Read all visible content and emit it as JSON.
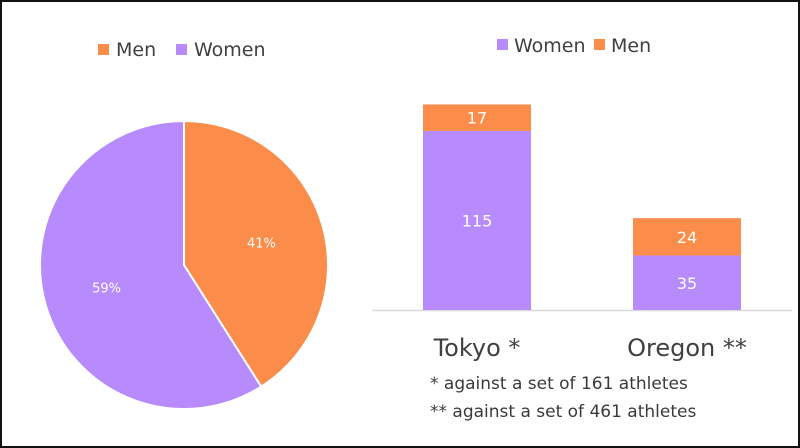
{
  "colors": {
    "men": "#fb8c4a",
    "women": "#b78bfb",
    "text": "#404040",
    "axis": "#d9d9d9"
  },
  "chart_data": [
    {
      "type": "pie",
      "legend": [
        "Men",
        "Women"
      ],
      "legend_position": "top",
      "slices": [
        {
          "name": "Men",
          "value": 41,
          "label": "41%"
        },
        {
          "name": "Women",
          "value": 59,
          "label": "59%"
        }
      ]
    },
    {
      "type": "bar",
      "stacked": true,
      "legend": [
        "Women",
        "Men"
      ],
      "legend_position": "top",
      "categories": [
        "Tokyo *",
        "Oregon **"
      ],
      "series": [
        {
          "name": "Women",
          "values": [
            115,
            35
          ]
        },
        {
          "name": "Men",
          "values": [
            17,
            24
          ]
        }
      ],
      "ylim": [
        0,
        140
      ],
      "grid": false
    }
  ],
  "footnotes": [
    "* against a set of 161 athletes",
    "** against a set of 461 athletes"
  ]
}
